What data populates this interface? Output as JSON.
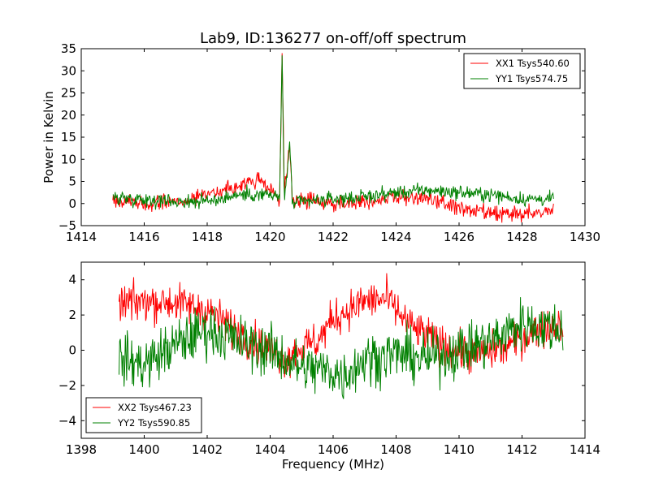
{
  "chart_data": [
    {
      "type": "line",
      "title": "Lab9, ID:136277 on-off/off spectrum",
      "xlabel": "",
      "ylabel": "Power in Kelvin",
      "xlim": [
        1414,
        1430
      ],
      "ylim": [
        -5,
        35
      ],
      "xticks": [
        1414,
        1416,
        1418,
        1420,
        1422,
        1424,
        1426,
        1428,
        1430
      ],
      "yticks": [
        -5,
        0,
        5,
        10,
        15,
        20,
        25,
        30,
        35
      ],
      "grid": false,
      "legend": "top-right",
      "x_range": [
        1415,
        1429
      ],
      "series": [
        {
          "name": "XX1 Tsys540.60",
          "color": "#ff0000",
          "noise": 0.9,
          "profile": [
            [
              1415,
              0.5
            ],
            [
              1416,
              0
            ],
            [
              1417,
              0.5
            ],
            [
              1418,
              2
            ],
            [
              1419,
              4
            ],
            [
              1419.6,
              5.5
            ],
            [
              1420,
              3
            ],
            [
              1420.3,
              1
            ],
            [
              1420.38,
              34
            ],
            [
              1420.45,
              1.5
            ],
            [
              1420.62,
              13
            ],
            [
              1420.7,
              1
            ],
            [
              1421,
              0.8
            ],
            [
              1422,
              0
            ],
            [
              1423,
              0.5
            ],
            [
              1424,
              1.5
            ],
            [
              1425,
              1
            ],
            [
              1426,
              -1
            ],
            [
              1427,
              -2.5
            ],
            [
              1428,
              -2.5
            ],
            [
              1429,
              -1.5
            ]
          ]
        },
        {
          "name": "YY1 Tsys574.75",
          "color": "#008000",
          "noise": 0.8,
          "profile": [
            [
              1415,
              1.5
            ],
            [
              1416,
              1
            ],
            [
              1417,
              0.5
            ],
            [
              1418,
              0.5
            ],
            [
              1419,
              2
            ],
            [
              1420,
              2
            ],
            [
              1420.3,
              1
            ],
            [
              1420.38,
              33.5
            ],
            [
              1420.45,
              0
            ],
            [
              1420.62,
              14
            ],
            [
              1420.7,
              0
            ],
            [
              1421,
              0.3
            ],
            [
              1422,
              1
            ],
            [
              1423,
              1.5
            ],
            [
              1424,
              2.5
            ],
            [
              1425,
              3
            ],
            [
              1426,
              2.5
            ],
            [
              1427,
              2
            ],
            [
              1428,
              1
            ],
            [
              1429,
              1
            ]
          ]
        }
      ]
    },
    {
      "type": "line",
      "title": "",
      "xlabel": "Frequency (MHz)",
      "ylabel": "",
      "xlim": [
        1398,
        1414
      ],
      "ylim": [
        -5,
        5
      ],
      "xticks": [
        1398,
        1400,
        1402,
        1404,
        1406,
        1408,
        1410,
        1412,
        1414
      ],
      "yticks": [
        -4,
        -2,
        0,
        2,
        4
      ],
      "grid": false,
      "legend": "bottom-left",
      "x_range": [
        1399.2,
        1413.3
      ],
      "series": [
        {
          "name": "XX2 Tsys467.23",
          "color": "#ff0000",
          "noise": 0.55,
          "profile": [
            [
              1399.2,
              2.6
            ],
            [
              1400,
              2.8
            ],
            [
              1401,
              2.7
            ],
            [
              1402,
              2.3
            ],
            [
              1403,
              1
            ],
            [
              1404,
              0
            ],
            [
              1404.5,
              -0.5
            ],
            [
              1405,
              0.2
            ],
            [
              1405.5,
              0.5
            ],
            [
              1406,
              1.8
            ],
            [
              1407,
              2.8
            ],
            [
              1407.7,
              2.9
            ],
            [
              1408.5,
              1.3
            ],
            [
              1409.5,
              0.3
            ],
            [
              1410.5,
              -0.3
            ],
            [
              1411.5,
              0.2
            ],
            [
              1412.5,
              1.2
            ],
            [
              1413.3,
              1.5
            ]
          ]
        },
        {
          "name": "YY2 Tsys590.85",
          "color": "#008000",
          "noise": 0.75,
          "profile": [
            [
              1399.2,
              -0.5
            ],
            [
              1400,
              -0.8
            ],
            [
              1401,
              0.3
            ],
            [
              1402,
              1.2
            ],
            [
              1403,
              0.5
            ],
            [
              1404,
              0
            ],
            [
              1405,
              -1
            ],
            [
              1406,
              -1.2
            ],
            [
              1406.3,
              -1.5
            ],
            [
              1407,
              -0.5
            ],
            [
              1408,
              -0.2
            ],
            [
              1409,
              -0.5
            ],
            [
              1410,
              0
            ],
            [
              1411,
              0.5
            ],
            [
              1412,
              1.5
            ],
            [
              1413.3,
              1.2
            ]
          ]
        }
      ]
    }
  ]
}
